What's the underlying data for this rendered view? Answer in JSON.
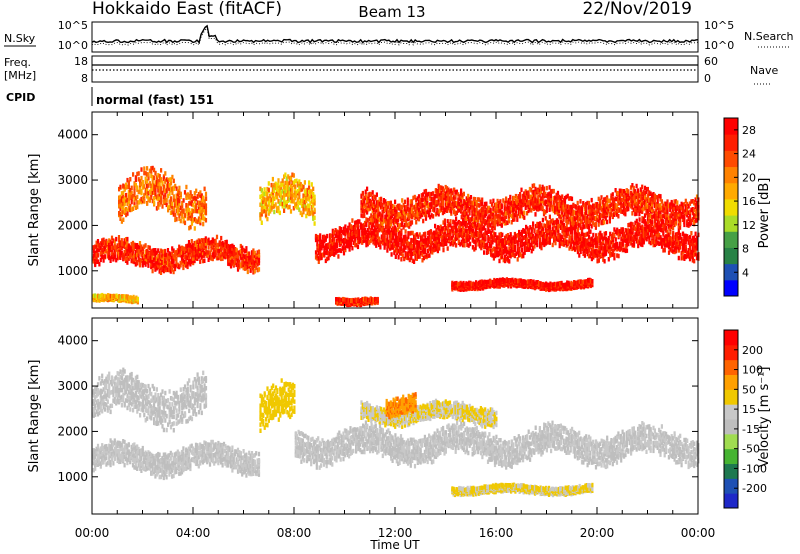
{
  "header": {
    "station": "Hokkaido East (fitACF)",
    "beam": "Beam 13",
    "date": "22/Nov/2019"
  },
  "side_labels": {
    "nsky": "N.Sky",
    "nsearch": "N.Search",
    "freq_top": "Freq.",
    "freq_unit": "[MHz]",
    "nave": "Nave",
    "cpid": "CPID",
    "cpid_value": "normal (fast) 151"
  },
  "noise_axis": {
    "left_ticks": [
      "10^5",
      "10^0"
    ],
    "right_ticks": [
      "10^5",
      "10^0"
    ]
  },
  "freq_axis": {
    "left_ticks": [
      "18",
      "8"
    ],
    "right_ticks": [
      "60",
      "0"
    ]
  },
  "colors": {
    "frame": "#000000",
    "power_scale": [
      "#0000ff",
      "#1e50b4",
      "#288246",
      "#46a046",
      "#aadc28",
      "#f0dc00",
      "#ffaa00",
      "#ff8200",
      "#ff4b00",
      "#ff1e00",
      "#ff0000"
    ],
    "velocity_scale": [
      "#1e28c8",
      "#1e50b4",
      "#1e7850",
      "#46b432",
      "#a0dc50",
      "#bebebe",
      "#c8c8c8",
      "#f0c800",
      "#ffa000",
      "#ff6400",
      "#ff1e00",
      "#ff0000"
    ]
  },
  "chart_data": [
    {
      "type": "heatmap",
      "name": "Power",
      "xlabel": "Time UT",
      "ylabel": "Slant Range [km]",
      "x_ticks": [
        "00:00",
        "04:00",
        "08:00",
        "12:00",
        "16:00",
        "20:00",
        "00:00"
      ],
      "x_range_hours": [
        0,
        24
      ],
      "ylim": [
        180,
        4500
      ],
      "y_ticks": [
        1000,
        2000,
        3000,
        4000
      ],
      "colorbar_label": "Power [dB]",
      "colorbar_ticks": [
        4,
        8,
        12,
        16,
        20,
        24,
        28
      ],
      "colorbar_range": [
        0,
        30
      ],
      "echo_bands": [
        {
          "t_start": 0.0,
          "t_end": 6.6,
          "range_center": 1350,
          "width": 420,
          "value": 26
        },
        {
          "t_start": 6.6,
          "t_end": 8.8,
          "range_center": 2500,
          "width": 650,
          "value": 18
        },
        {
          "t_start": 8.8,
          "t_end": 24.0,
          "range_center": 1700,
          "width": 500,
          "value": 28
        },
        {
          "t_start": 10.6,
          "t_end": 24.0,
          "range_center": 2400,
          "width": 500,
          "value": 26
        },
        {
          "t_start": 1.0,
          "t_end": 4.5,
          "range_center": 2600,
          "width": 700,
          "value": 22
        },
        {
          "t_start": 14.2,
          "t_end": 19.8,
          "range_center": 700,
          "width": 120,
          "value": 28
        },
        {
          "t_start": 9.6,
          "t_end": 11.3,
          "range_center": 350,
          "width": 100,
          "value": 26
        },
        {
          "t_start": 0.0,
          "t_end": 1.8,
          "range_center": 380,
          "width": 90,
          "value": 18
        }
      ]
    },
    {
      "type": "heatmap",
      "name": "Velocity",
      "xlabel": "Time UT",
      "ylabel": "Slant Range [km]",
      "x_ticks": [
        "00:00",
        "04:00",
        "08:00",
        "12:00",
        "16:00",
        "20:00",
        "00:00"
      ],
      "x_range_hours": [
        0,
        24
      ],
      "ylim": [
        180,
        4500
      ],
      "y_ticks": [
        1000,
        2000,
        3000,
        4000
      ],
      "colorbar_label": "Velocity [m s⁻¹]",
      "colorbar_ticks": [
        200,
        100,
        50,
        15,
        -15,
        -50,
        -100,
        -200
      ],
      "colorbar_range": [
        -250,
        250
      ],
      "echo_bands": [
        {
          "t_start": 0.0,
          "t_end": 6.6,
          "range_center": 1400,
          "width": 420,
          "value": 0
        },
        {
          "t_start": 6.6,
          "t_end": 8.0,
          "range_center": 2500,
          "width": 650,
          "value": 60
        },
        {
          "t_start": 8.0,
          "t_end": 24.0,
          "range_center": 1700,
          "width": 500,
          "value": 0
        },
        {
          "t_start": 10.6,
          "t_end": 16.0,
          "range_center": 2400,
          "width": 300,
          "value": 40
        },
        {
          "t_start": 11.6,
          "t_end": 12.8,
          "range_center": 2600,
          "width": 300,
          "value": 120
        },
        {
          "t_start": 14.2,
          "t_end": 19.8,
          "range_center": 720,
          "width": 120,
          "value": 45
        },
        {
          "t_start": 0.0,
          "t_end": 4.5,
          "range_center": 2700,
          "width": 700,
          "value": -5
        }
      ]
    }
  ]
}
